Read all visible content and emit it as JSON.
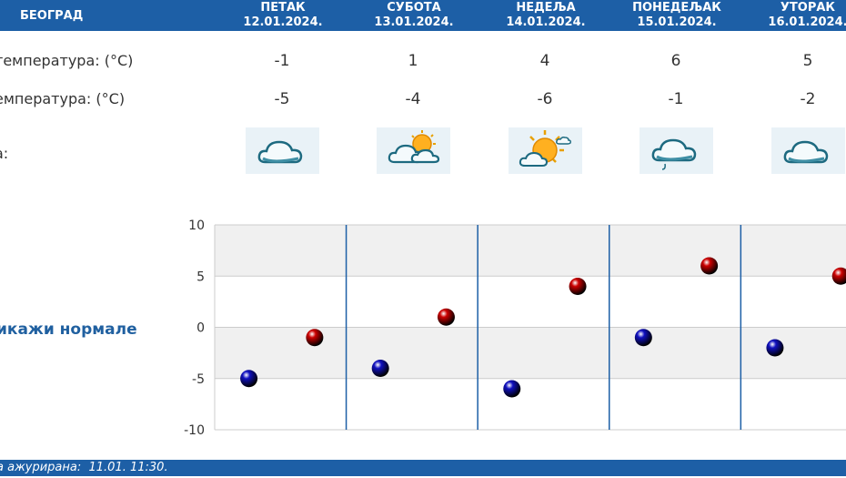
{
  "header": {
    "city": "БЕОГРАД",
    "days": [
      {
        "name": "ПЕТАК",
        "date": "12.01.2024."
      },
      {
        "name": "СУБОТА",
        "date": "13.01.2024."
      },
      {
        "name": "НЕДЕЉА",
        "date": "14.01.2024."
      },
      {
        "name": "ПОНЕДЕЉАК",
        "date": "15.01.2024."
      },
      {
        "name": "УТОРАК",
        "date": "16.01.2024."
      }
    ]
  },
  "rows": {
    "max_label": "температура: (°C)",
    "min_label": "емпература: (°C)",
    "icon_label": "а:",
    "max_values": [
      "-1",
      "1",
      "4",
      "6",
      "5"
    ],
    "min_values": [
      "-5",
      "-4",
      "-6",
      "-1",
      "-2"
    ],
    "icons": [
      "cloud-icon",
      "partly-cloudy-icon",
      "sunny-icon",
      "cloud-drizzle-icon",
      "cloud-icon"
    ]
  },
  "normals_link": "икажи нормале",
  "footer": {
    "updated_label": "а ажурирана:",
    "updated_value": "11.01. 11:30."
  },
  "chart_data": {
    "type": "scatter",
    "categories": [
      "ПЕТАК",
      "СУБОТА",
      "НЕДЕЉА",
      "ПОНЕДЕЉАК",
      "УТОРАК"
    ],
    "series": [
      {
        "values": [
          -5,
          -4,
          -6,
          -1,
          -2
        ],
        "color": "#1010c0"
      },
      {
        "values": [
          -1,
          1,
          4,
          6,
          5
        ],
        "color": "#cc0000"
      }
    ],
    "yticks": [
      "10",
      "5",
      "0",
      "-5",
      "-10"
    ],
    "ylim": [
      -10,
      10
    ],
    "grid": true,
    "colors": {
      "band": "#f0f0f0",
      "separator": "#1d5fa6",
      "grid": "#cccccc"
    }
  }
}
